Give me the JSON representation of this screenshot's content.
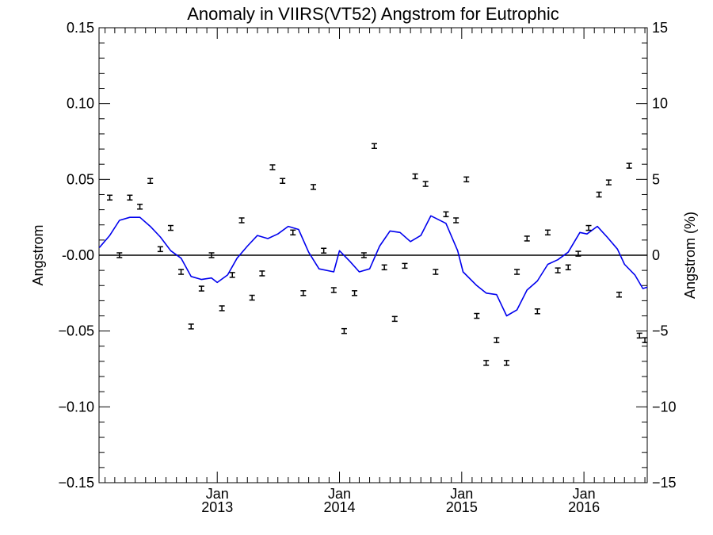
{
  "chart_data": {
    "type": "line",
    "title": "Anomaly in VIIRS(VT52) Angstrom for Eutrophic",
    "ylabel": "Angstrom",
    "ylabel_right": "Angstrom (%)",
    "ylim": [
      -0.15,
      0.15
    ],
    "ylim_right": [
      -15,
      15
    ],
    "xlim": [
      "2012-01-14",
      "2016-07-08"
    ],
    "yticks": [
      {
        "value": 0.15,
        "label": "0.15"
      },
      {
        "value": 0.1,
        "label": "0.10"
      },
      {
        "value": 0.05,
        "label": "0.05"
      },
      {
        "value": 0.0,
        "label": "-0.00"
      },
      {
        "value": -0.05,
        "label": "−0.05"
      },
      {
        "value": -0.1,
        "label": "−0.10"
      },
      {
        "value": -0.15,
        "label": "−0.15"
      }
    ],
    "yticks_right": [
      {
        "value": 15,
        "label": "15"
      },
      {
        "value": 10,
        "label": "10"
      },
      {
        "value": 5,
        "label": "5"
      },
      {
        "value": 0,
        "label": "0"
      },
      {
        "value": -5,
        "label": "−5"
      },
      {
        "value": -10,
        "label": "−10"
      },
      {
        "value": -15,
        "label": "−15"
      }
    ],
    "xticks": [
      {
        "date": "2013-01-01",
        "month": "Jan",
        "year": "2013"
      },
      {
        "date": "2014-01-01",
        "month": "Jan",
        "year": "2014"
      },
      {
        "date": "2015-01-01",
        "month": "Jan",
        "year": "2015"
      },
      {
        "date": "2016-01-01",
        "month": "Jan",
        "year": "2016"
      }
    ],
    "zero_line": 0,
    "series": [
      {
        "kind": "errorbar",
        "color": "#000000",
        "points": [
          {
            "x": "2012-02-15",
            "y": 0.038
          },
          {
            "x": "2012-03-15",
            "y": 0.0
          },
          {
            "x": "2012-04-15",
            "y": 0.038
          },
          {
            "x": "2012-05-15",
            "y": 0.032
          },
          {
            "x": "2012-06-15",
            "y": 0.049
          },
          {
            "x": "2012-07-15",
            "y": 0.004
          },
          {
            "x": "2012-08-15",
            "y": 0.018
          },
          {
            "x": "2012-09-15",
            "y": -0.011
          },
          {
            "x": "2012-10-15",
            "y": -0.047
          },
          {
            "x": "2012-11-15",
            "y": -0.022
          },
          {
            "x": "2012-12-15",
            "y": 0.0
          },
          {
            "x": "2013-01-15",
            "y": -0.035
          },
          {
            "x": "2013-02-15",
            "y": -0.013
          },
          {
            "x": "2013-03-15",
            "y": 0.023
          },
          {
            "x": "2013-04-15",
            "y": -0.028
          },
          {
            "x": "2013-05-15",
            "y": -0.012
          },
          {
            "x": "2013-06-15",
            "y": 0.058
          },
          {
            "x": "2013-07-15",
            "y": 0.049
          },
          {
            "x": "2013-08-15",
            "y": 0.015
          },
          {
            "x": "2013-09-15",
            "y": -0.025
          },
          {
            "x": "2013-10-15",
            "y": 0.045
          },
          {
            "x": "2013-11-15",
            "y": 0.003
          },
          {
            "x": "2013-12-15",
            "y": -0.023
          },
          {
            "x": "2014-01-15",
            "y": -0.05
          },
          {
            "x": "2014-02-15",
            "y": -0.025
          },
          {
            "x": "2014-03-15",
            "y": 0.0
          },
          {
            "x": "2014-04-15",
            "y": 0.072
          },
          {
            "x": "2014-05-15",
            "y": -0.008
          },
          {
            "x": "2014-06-15",
            "y": -0.042
          },
          {
            "x": "2014-07-15",
            "y": -0.007
          },
          {
            "x": "2014-08-15",
            "y": 0.052
          },
          {
            "x": "2014-09-15",
            "y": 0.047
          },
          {
            "x": "2014-10-15",
            "y": -0.011
          },
          {
            "x": "2014-11-15",
            "y": 0.027
          },
          {
            "x": "2014-12-15",
            "y": 0.023
          },
          {
            "x": "2015-01-15",
            "y": 0.05
          },
          {
            "x": "2015-02-15",
            "y": -0.04
          },
          {
            "x": "2015-03-15",
            "y": -0.071
          },
          {
            "x": "2015-04-15",
            "y": -0.056
          },
          {
            "x": "2015-05-15",
            "y": -0.071
          },
          {
            "x": "2015-06-15",
            "y": -0.011
          },
          {
            "x": "2015-07-15",
            "y": 0.011
          },
          {
            "x": "2015-08-15",
            "y": -0.037
          },
          {
            "x": "2015-09-15",
            "y": 0.015
          },
          {
            "x": "2015-10-15",
            "y": -0.01
          },
          {
            "x": "2015-11-15",
            "y": -0.008
          },
          {
            "x": "2015-12-15",
            "y": 0.001
          },
          {
            "x": "2016-01-15",
            "y": 0.018
          },
          {
            "x": "2016-02-15",
            "y": 0.04
          },
          {
            "x": "2016-03-15",
            "y": 0.048
          },
          {
            "x": "2016-04-15",
            "y": -0.026
          },
          {
            "x": "2016-05-15",
            "y": 0.059
          },
          {
            "x": "2016-06-15",
            "y": -0.053
          },
          {
            "x": "2016-07-01",
            "y": -0.056
          }
        ]
      },
      {
        "kind": "line",
        "color": "#0000ee",
        "points": [
          {
            "x": "2012-01-15",
            "y": 0.005
          },
          {
            "x": "2012-02-15",
            "y": 0.013
          },
          {
            "x": "2012-03-15",
            "y": 0.023
          },
          {
            "x": "2012-04-15",
            "y": 0.025
          },
          {
            "x": "2012-05-15",
            "y": 0.025
          },
          {
            "x": "2012-06-15",
            "y": 0.019
          },
          {
            "x": "2012-07-15",
            "y": 0.012
          },
          {
            "x": "2012-08-15",
            "y": 0.003
          },
          {
            "x": "2012-09-15",
            "y": -0.002
          },
          {
            "x": "2012-10-15",
            "y": -0.014
          },
          {
            "x": "2012-11-15",
            "y": -0.016
          },
          {
            "x": "2012-12-15",
            "y": -0.015
          },
          {
            "x": "2013-01-01",
            "y": -0.018
          },
          {
            "x": "2013-02-01",
            "y": -0.013
          },
          {
            "x": "2013-03-01",
            "y": -0.002
          },
          {
            "x": "2013-04-01",
            "y": 0.006
          },
          {
            "x": "2013-05-01",
            "y": 0.013
          },
          {
            "x": "2013-06-01",
            "y": 0.011
          },
          {
            "x": "2013-07-01",
            "y": 0.014
          },
          {
            "x": "2013-08-01",
            "y": 0.019
          },
          {
            "x": "2013-09-01",
            "y": 0.017
          },
          {
            "x": "2013-10-01",
            "y": 0.002
          },
          {
            "x": "2013-11-01",
            "y": -0.009
          },
          {
            "x": "2013-12-15",
            "y": -0.011
          },
          {
            "x": "2014-01-01",
            "y": 0.003
          },
          {
            "x": "2014-02-01",
            "y": -0.004
          },
          {
            "x": "2014-03-01",
            "y": -0.011
          },
          {
            "x": "2014-04-01",
            "y": -0.009
          },
          {
            "x": "2014-05-01",
            "y": 0.006
          },
          {
            "x": "2014-06-01",
            "y": 0.016
          },
          {
            "x": "2014-07-01",
            "y": 0.015
          },
          {
            "x": "2014-08-01",
            "y": 0.009
          },
          {
            "x": "2014-09-01",
            "y": 0.013
          },
          {
            "x": "2014-10-01",
            "y": 0.026
          },
          {
            "x": "2014-11-15",
            "y": 0.021
          },
          {
            "x": "2014-12-20",
            "y": 0.003
          },
          {
            "x": "2015-01-05",
            "y": -0.011
          },
          {
            "x": "2015-02-15",
            "y": -0.02
          },
          {
            "x": "2015-03-15",
            "y": -0.025
          },
          {
            "x": "2015-04-15",
            "y": -0.026
          },
          {
            "x": "2015-05-15",
            "y": -0.04
          },
          {
            "x": "2015-06-15",
            "y": -0.036
          },
          {
            "x": "2015-07-15",
            "y": -0.023
          },
          {
            "x": "2015-08-15",
            "y": -0.017
          },
          {
            "x": "2015-09-15",
            "y": -0.006
          },
          {
            "x": "2015-10-15",
            "y": -0.003
          },
          {
            "x": "2015-11-15",
            "y": 0.002
          },
          {
            "x": "2015-12-20",
            "y": 0.015
          },
          {
            "x": "2016-01-10",
            "y": 0.014
          },
          {
            "x": "2016-02-10",
            "y": 0.019
          },
          {
            "x": "2016-03-10",
            "y": 0.012
          },
          {
            "x": "2016-04-10",
            "y": 0.004
          },
          {
            "x": "2016-05-01",
            "y": -0.006
          },
          {
            "x": "2016-06-01",
            "y": -0.013
          },
          {
            "x": "2016-06-25",
            "y": -0.022
          },
          {
            "x": "2016-07-08",
            "y": -0.021
          }
        ]
      }
    ]
  }
}
